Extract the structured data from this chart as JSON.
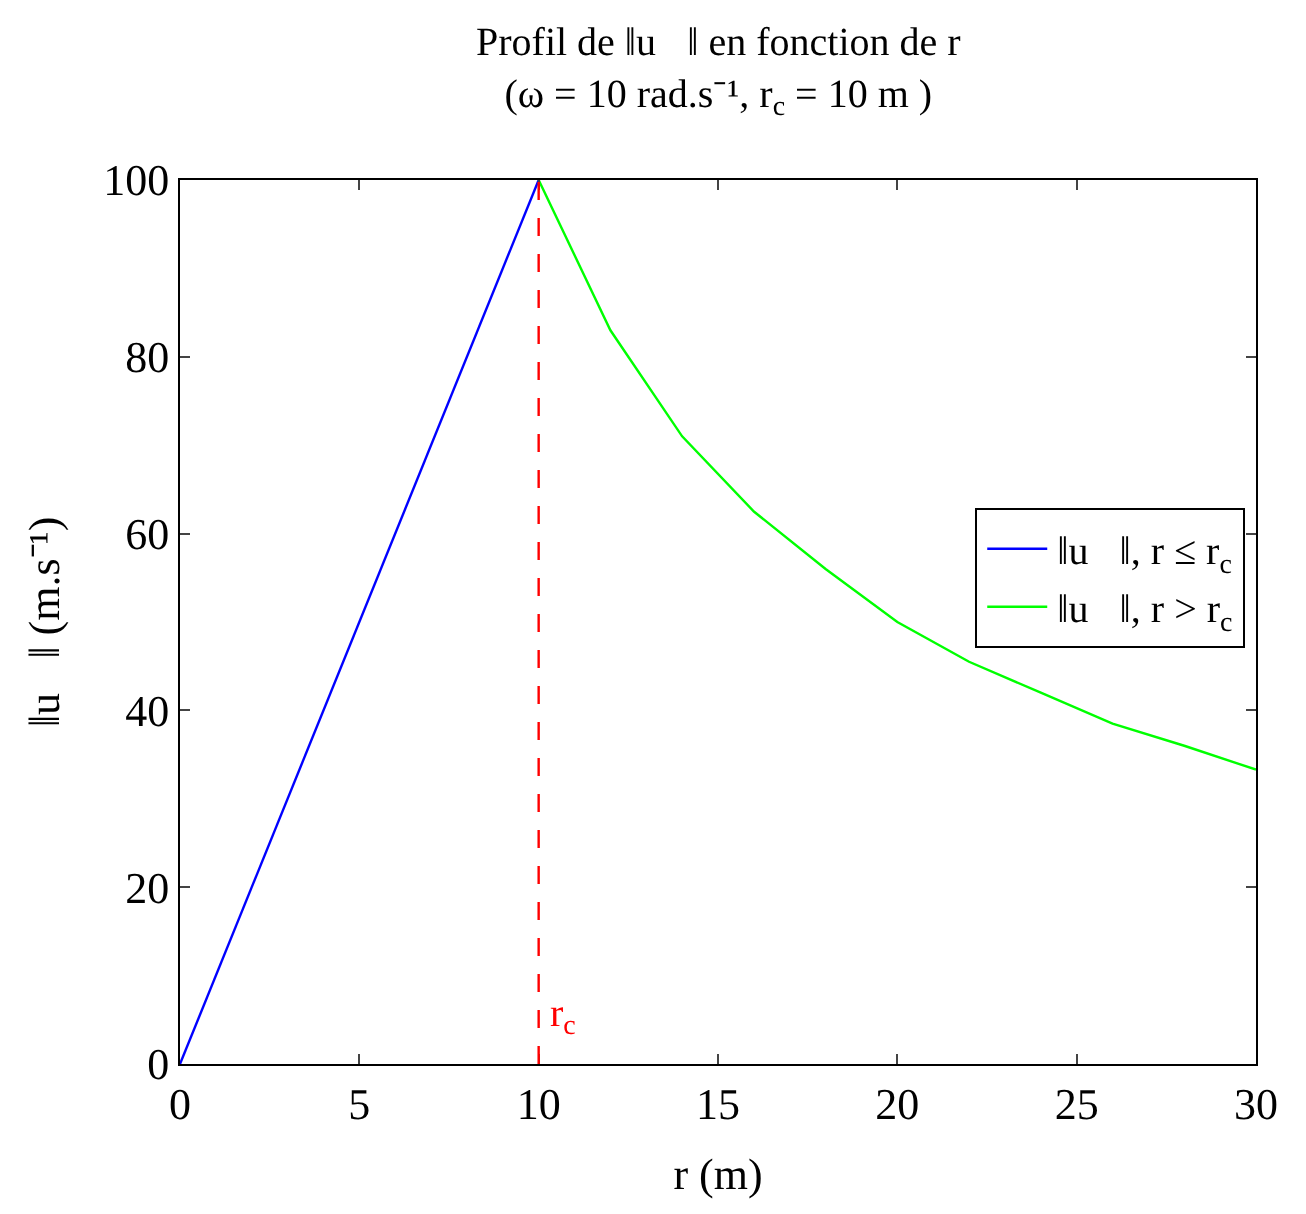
{
  "chart_data": {
    "type": "line",
    "title": "Profil de ‖u⃗‖ en fonction de r",
    "subtitle": "(ω = 10 rad.s⁻¹, r$_{c}$ = 10 m )",
    "xlabel": "r (m)",
    "ylabel": "‖u⃗‖ (m.s⁻¹)",
    "series": [
      {
        "name": "‖u⃗‖, r ≤ r$_{c}$",
        "color": "#0000ff",
        "x": [
          0,
          10
        ],
        "values": [
          0,
          100
        ]
      },
      {
        "name": "‖u⃗‖, r > r$_{c}$",
        "color": "#00ff00",
        "x": [
          10,
          12,
          14,
          16,
          18,
          20,
          22,
          24,
          26,
          28,
          30
        ],
        "values": [
          100,
          83,
          71,
          62.5,
          56,
          50,
          45.5,
          42,
          38.5,
          36,
          33.3
        ]
      }
    ],
    "ref_lines": [
      {
        "axis": "x",
        "value": 10,
        "label": "r$_{c}$",
        "color": "#ff0000",
        "line_style": "dashed"
      }
    ],
    "xlim": [
      0,
      30
    ],
    "xticks": [
      0,
      5,
      10,
      15,
      20,
      25,
      30
    ],
    "ylim": [
      0,
      100
    ],
    "yticks": [
      0,
      20,
      40,
      60,
      80,
      100
    ],
    "grid": false,
    "legend": "right",
    "marker": "none",
    "line_style": "solid"
  }
}
